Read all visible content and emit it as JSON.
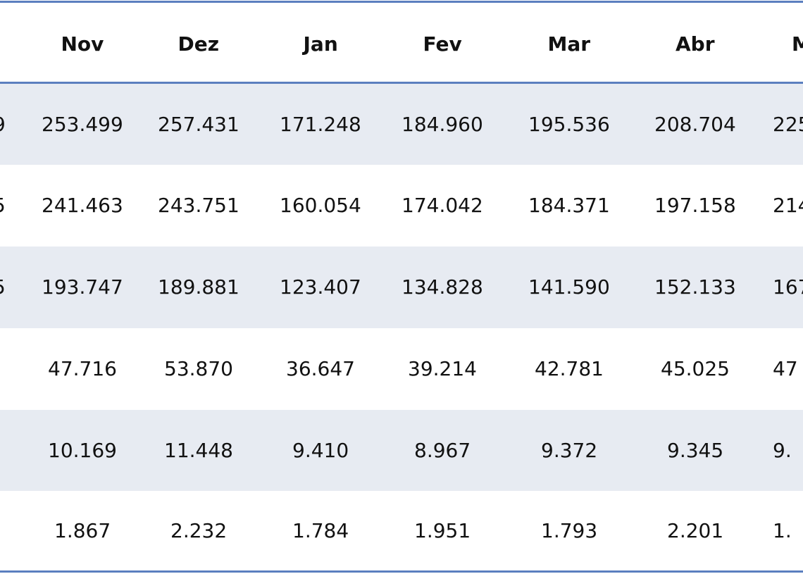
{
  "table": {
    "header": {
      "cells": [
        "Nov",
        "Dez",
        "Jan",
        "Fev",
        "Mar",
        "Abr"
      ],
      "right": "M"
    },
    "rows": [
      {
        "left": "9",
        "cells": [
          "253.499",
          "257.431",
          "171.248",
          "184.960",
          "195.536",
          "208.704"
        ],
        "right": "225"
      },
      {
        "left": "5",
        "cells": [
          "241.463",
          "243.751",
          "160.054",
          "174.042",
          "184.371",
          "197.158"
        ],
        "right": "214"
      },
      {
        "left": "5",
        "cells": [
          "193.747",
          "189.881",
          "123.407",
          "134.828",
          "141.590",
          "152.133"
        ],
        "right": "167"
      },
      {
        "cells": [
          "47.716",
          "53.870",
          "36.647",
          "39.214",
          "42.781",
          "45.025"
        ],
        "right": "47"
      },
      {
        "cells": [
          "10.169",
          "11.448",
          "9.410",
          "8.967",
          "9.372",
          "9.345"
        ],
        "right": "9."
      },
      {
        "cells": [
          "1.867",
          "2.232",
          "1.784",
          "1.951",
          "1.793",
          "2.201"
        ],
        "right": "1."
      }
    ]
  }
}
